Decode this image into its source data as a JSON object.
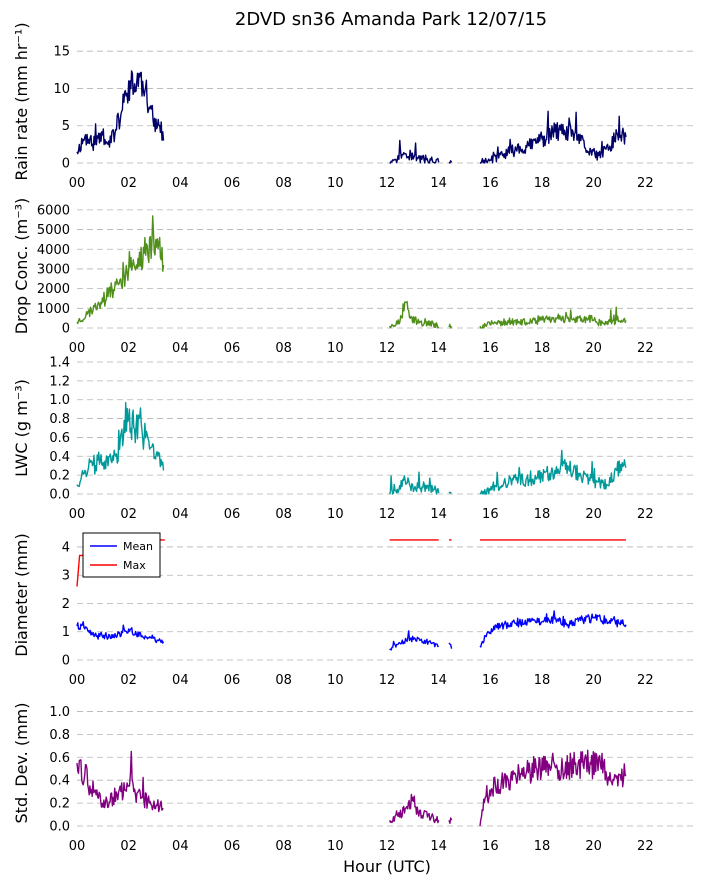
{
  "figure": {
    "title": "2DVD sn36 Amanda Park 12/07/15",
    "xlabel": "Hour (UTC)"
  },
  "chart_data": [
    {
      "type": "line",
      "ylabel": "Rain rate (mm hr⁻¹)",
      "xlim": [
        0,
        24
      ],
      "ylim": [
        0,
        16.5
      ],
      "yticks": [
        0,
        5,
        10,
        15
      ],
      "xticks": [
        "00",
        "02",
        "04",
        "06",
        "08",
        "10",
        "12",
        "14",
        "16",
        "18",
        "20",
        "22"
      ],
      "grid": "horizontal dashed",
      "series": [
        {
          "color": "#000066",
          "noise": 1.2,
          "seed": 11,
          "segments": [
            [
              [
                0.0,
                1.5
              ],
              [
                0.3,
                3.5
              ],
              [
                0.6,
                2.5
              ],
              [
                0.9,
                4.0
              ],
              [
                1.2,
                2.5
              ],
              [
                1.5,
                4.5
              ],
              [
                1.7,
                6.5
              ],
              [
                1.9,
                9.0
              ],
              [
                2.0,
                11.0
              ],
              [
                2.2,
                9.5
              ],
              [
                2.4,
                12.0
              ],
              [
                2.6,
                9.0
              ],
              [
                2.8,
                7.5
              ],
              [
                3.0,
                6.0
              ],
              [
                3.2,
                5.0
              ],
              [
                3.35,
                3.0
              ]
            ],
            [
              [
                12.1,
                0.0
              ],
              [
                12.4,
                0.4
              ],
              [
                12.65,
                1.4
              ],
              [
                12.8,
                0.8
              ],
              [
                13.2,
                0.6
              ],
              [
                13.7,
                0.4
              ],
              [
                14.0,
                0.1
              ]
            ],
            [
              [
                14.4,
                0.1
              ],
              [
                14.5,
                0.1
              ]
            ],
            [
              [
                15.6,
                0.0
              ],
              [
                16.0,
                0.4
              ],
              [
                16.5,
                1.2
              ],
              [
                17.0,
                1.8
              ],
              [
                17.5,
                2.3
              ],
              [
                18.0,
                3.2
              ],
              [
                18.5,
                4.2
              ],
              [
                18.9,
                3.8
              ],
              [
                19.2,
                4.2
              ],
              [
                19.5,
                3.0
              ],
              [
                19.8,
                1.5
              ],
              [
                20.2,
                1.0
              ],
              [
                20.6,
                2.0
              ],
              [
                20.9,
                4.0
              ],
              [
                21.25,
                3.5
              ]
            ]
          ]
        }
      ]
    },
    {
      "type": "line",
      "ylabel": "Drop Conc. (m⁻³)",
      "xlim": [
        0,
        24
      ],
      "ylim": [
        0,
        6300
      ],
      "yticks": [
        0,
        1000,
        2000,
        3000,
        4000,
        5000,
        6000
      ],
      "xticks": [
        "00",
        "02",
        "04",
        "06",
        "08",
        "10",
        "12",
        "14",
        "16",
        "18",
        "20",
        "22"
      ],
      "grid": "horizontal dashed",
      "series": [
        {
          "color": "#4f8f1a",
          "noise": 350,
          "seed": 23,
          "segments": [
            [
              [
                0.0,
                300
              ],
              [
                0.4,
                700
              ],
              [
                0.8,
                1200
              ],
              [
                1.2,
                1600
              ],
              [
                1.6,
                2200
              ],
              [
                2.0,
                3000
              ],
              [
                2.3,
                3200
              ],
              [
                2.6,
                3800
              ],
              [
                2.9,
                4300
              ],
              [
                3.2,
                4600
              ],
              [
                3.35,
                3200
              ]
            ],
            [
              [
                12.1,
                100
              ],
              [
                12.5,
                300
              ],
              [
                12.75,
                1300
              ],
              [
                12.9,
                500
              ],
              [
                13.3,
                300
              ],
              [
                13.8,
                200
              ],
              [
                14.0,
                60
              ]
            ],
            [
              [
                14.4,
                50
              ],
              [
                14.5,
                80
              ]
            ],
            [
              [
                15.6,
                100
              ],
              [
                16.2,
                250
              ],
              [
                16.8,
                350
              ],
              [
                17.4,
                280
              ],
              [
                18.0,
                400
              ],
              [
                18.6,
                520
              ],
              [
                19.2,
                420
              ],
              [
                19.8,
                480
              ],
              [
                20.4,
                220
              ],
              [
                20.9,
                400
              ],
              [
                21.25,
                380
              ]
            ]
          ]
        }
      ]
    },
    {
      "type": "line",
      "ylabel": "LWC (g m⁻³)",
      "xlim": [
        0,
        24
      ],
      "ylim": [
        0,
        1.4
      ],
      "yticks": [
        0.0,
        0.2,
        0.4,
        0.6,
        0.8,
        1.0,
        1.2,
        1.4
      ],
      "xticks": [
        "00",
        "02",
        "04",
        "06",
        "08",
        "10",
        "12",
        "14",
        "16",
        "18",
        "20",
        "22"
      ],
      "grid": "horizontal dashed",
      "series": [
        {
          "color": "#009999",
          "noise": 0.1,
          "seed": 37,
          "segments": [
            [
              [
                0.0,
                0.1
              ],
              [
                0.3,
                0.25
              ],
              [
                0.6,
                0.3
              ],
              [
                0.9,
                0.35
              ],
              [
                1.2,
                0.3
              ],
              [
                1.5,
                0.4
              ],
              [
                1.8,
                0.6
              ],
              [
                2.0,
                0.8
              ],
              [
                2.2,
                0.7
              ],
              [
                2.4,
                0.8
              ],
              [
                2.6,
                0.6
              ],
              [
                2.9,
                0.5
              ],
              [
                3.1,
                0.45
              ],
              [
                3.35,
                0.25
              ]
            ],
            [
              [
                12.1,
                0.0
              ],
              [
                12.4,
                0.05
              ],
              [
                12.7,
                0.15
              ],
              [
                12.9,
                0.08
              ],
              [
                13.3,
                0.06
              ],
              [
                13.8,
                0.05
              ],
              [
                14.0,
                0.01
              ]
            ],
            [
              [
                14.4,
                0.01
              ],
              [
                14.5,
                0.01
              ]
            ],
            [
              [
                15.6,
                0.0
              ],
              [
                16.0,
                0.04
              ],
              [
                16.5,
                0.1
              ],
              [
                17.0,
                0.15
              ],
              [
                17.5,
                0.15
              ],
              [
                18.0,
                0.2
              ],
              [
                18.5,
                0.25
              ],
              [
                19.0,
                0.3
              ],
              [
                19.5,
                0.2
              ],
              [
                20.0,
                0.12
              ],
              [
                20.5,
                0.1
              ],
              [
                20.9,
                0.25
              ],
              [
                21.25,
                0.28
              ]
            ]
          ]
        }
      ]
    },
    {
      "type": "line",
      "ylabel": "Diameter (mm)",
      "xlim": [
        0,
        24
      ],
      "ylim": [
        0,
        4.6
      ],
      "yticks": [
        0,
        1,
        2,
        3,
        4
      ],
      "xticks": [
        "00",
        "02",
        "04",
        "06",
        "08",
        "10",
        "12",
        "14",
        "16",
        "18",
        "20",
        "22"
      ],
      "grid": "horizontal dashed",
      "legend": "upper-left",
      "series": [
        {
          "name": "Mean",
          "color": "#0000ff",
          "noise": 0.12,
          "seed": 41,
          "segments": [
            [
              [
                0.0,
                1.2
              ],
              [
                0.3,
                1.1
              ],
              [
                0.6,
                0.9
              ],
              [
                1.0,
                0.8
              ],
              [
                1.5,
                0.85
              ],
              [
                2.0,
                1.1
              ],
              [
                2.3,
                0.9
              ],
              [
                2.7,
                0.8
              ],
              [
                3.1,
                0.7
              ],
              [
                3.35,
                0.65
              ]
            ],
            [
              [
                12.1,
                0.4
              ],
              [
                12.5,
                0.6
              ],
              [
                12.9,
                0.75
              ],
              [
                13.3,
                0.7
              ],
              [
                13.7,
                0.6
              ],
              [
                14.0,
                0.5
              ]
            ],
            [
              [
                14.4,
                0.6
              ],
              [
                14.5,
                0.4
              ]
            ],
            [
              [
                15.6,
                0.5
              ],
              [
                15.9,
                1.0
              ],
              [
                16.4,
                1.2
              ],
              [
                17.0,
                1.3
              ],
              [
                17.5,
                1.35
              ],
              [
                18.0,
                1.35
              ],
              [
                18.5,
                1.45
              ],
              [
                19.0,
                1.25
              ],
              [
                19.5,
                1.4
              ],
              [
                20.0,
                1.5
              ],
              [
                20.5,
                1.4
              ],
              [
                21.0,
                1.3
              ],
              [
                21.25,
                1.25
              ]
            ]
          ]
        },
        {
          "name": "Max",
          "color": "#ff0000",
          "noise": 0,
          "seed": 5,
          "segments": [
            [
              [
                0.0,
                2.6
              ],
              [
                0.1,
                3.7
              ],
              [
                0.35,
                3.7
              ],
              [
                0.45,
                4.25
              ],
              [
                3.4,
                4.25
              ]
            ],
            [
              [
                12.1,
                4.25
              ],
              [
                14.0,
                4.25
              ]
            ],
            [
              [
                14.4,
                4.25
              ],
              [
                14.5,
                4.25
              ]
            ],
            [
              [
                15.6,
                4.25
              ],
              [
                21.25,
                4.25
              ]
            ]
          ]
        }
      ]
    },
    {
      "type": "line",
      "ylabel": "Std. Dev. (mm)",
      "xlim": [
        0,
        24
      ],
      "ylim": [
        0,
        1.1
      ],
      "yticks": [
        0.0,
        0.2,
        0.4,
        0.6,
        0.8,
        1.0
      ],
      "xticks": [
        "00",
        "02",
        "04",
        "06",
        "08",
        "10",
        "12",
        "14",
        "16",
        "18",
        "20",
        "22"
      ],
      "grid": "horizontal dashed",
      "series": [
        {
          "color": "#800080",
          "noise": 0.07,
          "seed": 59,
          "segments": [
            [
              [
                0.0,
                0.55
              ],
              [
                0.3,
                0.45
              ],
              [
                0.5,
                0.35
              ],
              [
                0.8,
                0.25
              ],
              [
                1.1,
                0.2
              ],
              [
                1.4,
                0.25
              ],
              [
                1.7,
                0.3
              ],
              [
                2.0,
                0.35
              ],
              [
                2.1,
                0.65
              ],
              [
                2.2,
                0.3
              ],
              [
                2.5,
                0.25
              ],
              [
                2.8,
                0.2
              ],
              [
                3.1,
                0.18
              ],
              [
                3.35,
                0.15
              ]
            ],
            [
              [
                12.1,
                0.05
              ],
              [
                12.4,
                0.1
              ],
              [
                12.8,
                0.15
              ],
              [
                13.0,
                0.25
              ],
              [
                13.2,
                0.12
              ],
              [
                13.6,
                0.1
              ],
              [
                14.0,
                0.05
              ]
            ],
            [
              [
                14.4,
                0.05
              ],
              [
                14.5,
                0.05
              ]
            ],
            [
              [
                15.6,
                0.0
              ],
              [
                15.8,
                0.25
              ],
              [
                16.2,
                0.35
              ],
              [
                16.7,
                0.4
              ],
              [
                17.2,
                0.45
              ],
              [
                17.8,
                0.5
              ],
              [
                18.3,
                0.52
              ],
              [
                18.8,
                0.5
              ],
              [
                19.3,
                0.55
              ],
              [
                19.8,
                0.5
              ],
              [
                20.2,
                0.6
              ],
              [
                20.6,
                0.4
              ],
              [
                21.0,
                0.45
              ],
              [
                21.25,
                0.45
              ]
            ]
          ]
        }
      ]
    }
  ]
}
